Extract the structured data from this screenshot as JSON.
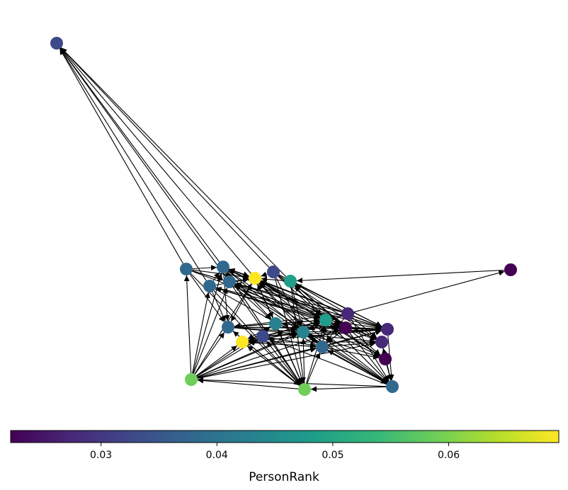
{
  "colorbar": {
    "label": "PersonRank",
    "min": 0.0222,
    "max": 0.0695,
    "ticks": [
      {
        "value": 0.03,
        "label": "0.03"
      },
      {
        "value": 0.04,
        "label": "0.04"
      },
      {
        "value": 0.05,
        "label": "0.05"
      },
      {
        "value": 0.06,
        "label": "0.06"
      }
    ]
  },
  "graph": {
    "edge_color": "#000000",
    "directed": true
  }
}
